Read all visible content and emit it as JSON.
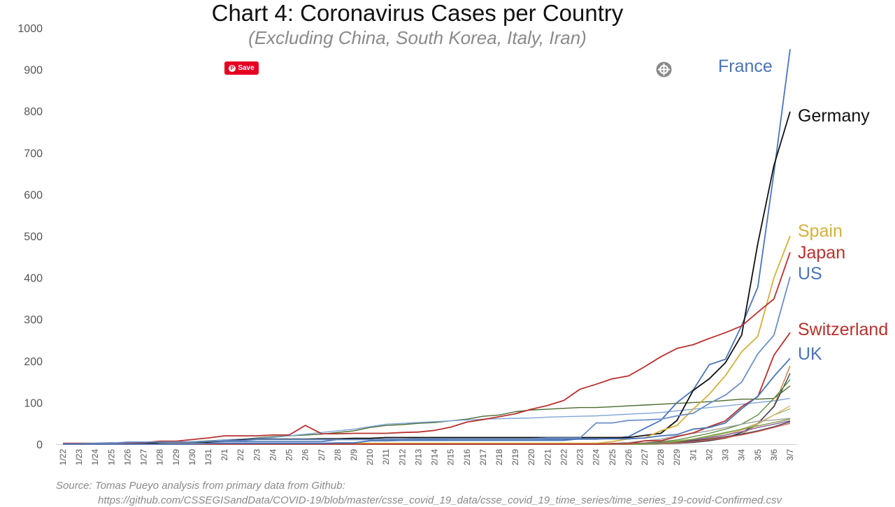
{
  "chart_data": {
    "type": "line",
    "title": "Chart 4: Coronavirus Cases per Country",
    "subtitle": "(Excluding China, South Korea, Italy, Iran)",
    "source_line1": "Source: Tomas Pueyo analysis from primary data from Github:",
    "source_line2": "https://github.com/CSSEGISandData/COVID-19/blob/master/csse_covid_19_data/csse_covid_19_time_series/time_series_19-covid-Confirmed.csv",
    "ylim": [
      0,
      1000
    ],
    "yticks": [
      0,
      100,
      200,
      300,
      400,
      500,
      600,
      700,
      800,
      900,
      1000
    ],
    "grid": false,
    "categories": [
      "1/22",
      "1/23",
      "1/24",
      "1/25",
      "1/26",
      "1/27",
      "1/28",
      "1/29",
      "1/30",
      "1/31",
      "2/1",
      "2/2",
      "2/3",
      "2/4",
      "2/5",
      "2/6",
      "2/7",
      "2/8",
      "2/9",
      "2/10",
      "2/11",
      "2/12",
      "2/13",
      "2/14",
      "2/15",
      "2/16",
      "2/17",
      "2/18",
      "2/19",
      "2/20",
      "2/21",
      "2/22",
      "2/23",
      "2/24",
      "2/25",
      "2/26",
      "2/27",
      "2/28",
      "2/29",
      "3/1",
      "3/2",
      "3/3",
      "3/4",
      "3/5",
      "3/6",
      "3/7"
    ],
    "series": [
      {
        "name": "France",
        "color": "#4a74b8",
        "labeled": true,
        "values": [
          0,
          0,
          2,
          3,
          3,
          3,
          4,
          5,
          5,
          5,
          6,
          6,
          6,
          6,
          6,
          6,
          6,
          11,
          11,
          11,
          11,
          11,
          11,
          11,
          12,
          12,
          12,
          12,
          12,
          12,
          12,
          12,
          12,
          12,
          14,
          18,
          38,
          57,
          100,
          130,
          191,
          204,
          285,
          377,
          653,
          949
        ]
      },
      {
        "name": "Germany",
        "color": "#111111",
        "labeled": true,
        "values": [
          0,
          0,
          0,
          0,
          0,
          1,
          4,
          4,
          4,
          5,
          8,
          10,
          12,
          12,
          12,
          12,
          13,
          13,
          14,
          14,
          16,
          16,
          16,
          16,
          16,
          16,
          16,
          16,
          16,
          16,
          16,
          16,
          16,
          16,
          16,
          16,
          21,
          26,
          57,
          129,
          157,
          196,
          262,
          482,
          670,
          799
        ]
      },
      {
        "name": "Spain",
        "color": "#d4b03a",
        "labeled": true,
        "values": [
          0,
          0,
          0,
          0,
          0,
          0,
          0,
          0,
          0,
          0,
          1,
          1,
          1,
          1,
          1,
          1,
          1,
          1,
          2,
          2,
          2,
          2,
          2,
          2,
          2,
          2,
          2,
          2,
          2,
          2,
          2,
          2,
          2,
          2,
          6,
          13,
          15,
          32,
          45,
          84,
          120,
          165,
          222,
          259,
          400,
          500
        ]
      },
      {
        "name": "Japan",
        "color": "#b8312f",
        "labeled": true,
        "values": [
          2,
          2,
          2,
          2,
          4,
          4,
          7,
          7,
          11,
          15,
          20,
          20,
          20,
          22,
          22,
          45,
          25,
          25,
          26,
          26,
          26,
          28,
          29,
          33,
          41,
          53,
          59,
          66,
          73,
          84,
          93,
          105,
          132,
          144,
          157,
          164,
          186,
          210,
          230,
          239,
          254,
          268,
          284,
          317,
          349,
          461
        ]
      },
      {
        "name": "US",
        "color": "#6b8fc7",
        "labeled": true,
        "values": [
          1,
          1,
          2,
          2,
          5,
          5,
          5,
          5,
          5,
          7,
          8,
          8,
          11,
          11,
          11,
          11,
          11,
          11,
          11,
          11,
          12,
          12,
          13,
          13,
          13,
          13,
          13,
          13,
          13,
          13,
          15,
          15,
          15,
          51,
          51,
          57,
          58,
          60,
          68,
          74,
          98,
          118,
          149,
          217,
          262,
          402
        ]
      },
      {
        "name": "Switzerland",
        "color": "#b8312f",
        "labeled": true,
        "values": [
          0,
          0,
          0,
          0,
          0,
          0,
          0,
          0,
          0,
          0,
          0,
          0,
          0,
          0,
          0,
          0,
          0,
          0,
          0,
          0,
          0,
          0,
          0,
          0,
          0,
          0,
          0,
          0,
          0,
          0,
          0,
          0,
          0,
          0,
          1,
          1,
          8,
          8,
          18,
          27,
          42,
          56,
          90,
          114,
          214,
          268
        ]
      },
      {
        "name": "UK",
        "color": "#4a74b8",
        "labeled": true,
        "values": [
          0,
          0,
          0,
          0,
          0,
          0,
          0,
          0,
          0,
          2,
          2,
          2,
          2,
          2,
          2,
          2,
          2,
          3,
          3,
          8,
          8,
          9,
          9,
          9,
          9,
          9,
          9,
          9,
          9,
          9,
          9,
          9,
          13,
          13,
          13,
          13,
          15,
          20,
          23,
          36,
          40,
          51,
          85,
          115,
          163,
          206
        ]
      },
      {
        "name": "",
        "color": "#4a6a2e",
        "labeled": false,
        "values": [
          0,
          0,
          0,
          0,
          0,
          2,
          5,
          5,
          6,
          8,
          10,
          12,
          15,
          18,
          20,
          22,
          24,
          28,
          32,
          40,
          45,
          47,
          50,
          52,
          56,
          60,
          67,
          70,
          78,
          82,
          84,
          86,
          88,
          88,
          90,
          92,
          94,
          96,
          98,
          100,
          102,
          105,
          108,
          108,
          110,
          140
        ]
      },
      {
        "name": "",
        "color": "#7fa6d8",
        "labeled": false,
        "values": [
          0,
          0,
          0,
          0,
          0,
          1,
          3,
          4,
          6,
          7,
          10,
          12,
          14,
          16,
          20,
          24,
          28,
          32,
          36,
          42,
          48,
          50,
          52,
          54,
          56,
          58,
          60,
          61,
          62,
          63,
          65,
          66,
          67,
          68,
          70,
          72,
          74,
          76,
          80,
          84,
          88,
          92,
          96,
          100,
          104,
          110
        ]
      },
      {
        "name": "",
        "color": "#c87c3b",
        "labeled": false,
        "values": [
          0,
          0,
          0,
          0,
          0,
          0,
          0,
          0,
          0,
          0,
          0,
          0,
          0,
          0,
          0,
          0,
          0,
          0,
          0,
          0,
          0,
          0,
          0,
          0,
          0,
          0,
          0,
          0,
          0,
          0,
          0,
          0,
          0,
          0,
          0,
          0,
          0,
          1,
          2,
          4,
          8,
          14,
          24,
          48,
          92,
          188
        ]
      },
      {
        "name": "",
        "color": "#2e4057",
        "labeled": false,
        "values": [
          0,
          0,
          0,
          0,
          0,
          0,
          0,
          0,
          0,
          0,
          0,
          0,
          0,
          0,
          0,
          0,
          0,
          0,
          0,
          0,
          0,
          0,
          0,
          0,
          0,
          0,
          0,
          0,
          0,
          0,
          0,
          0,
          0,
          0,
          0,
          0,
          0,
          1,
          2,
          4,
          8,
          15,
          28,
          50,
          90,
          170
        ]
      },
      {
        "name": "",
        "color": "#5b8d3e",
        "labeled": false,
        "values": [
          0,
          0,
          0,
          0,
          0,
          0,
          0,
          0,
          0,
          0,
          0,
          0,
          0,
          0,
          0,
          0,
          0,
          0,
          0,
          0,
          0,
          0,
          0,
          0,
          0,
          0,
          0,
          0,
          0,
          0,
          0,
          0,
          0,
          0,
          0,
          1,
          3,
          6,
          10,
          18,
          26,
          36,
          48,
          70,
          110,
          155
        ]
      },
      {
        "name": "",
        "color": "#9bc16a",
        "labeled": false,
        "values": [
          0,
          0,
          0,
          0,
          0,
          0,
          0,
          0,
          0,
          0,
          0,
          0,
          0,
          0,
          0,
          0,
          0,
          0,
          0,
          0,
          0,
          0,
          0,
          0,
          0,
          0,
          0,
          0,
          0,
          0,
          0,
          0,
          0,
          0,
          0,
          1,
          2,
          4,
          8,
          12,
          18,
          26,
          36,
          50,
          70,
          85
        ]
      },
      {
        "name": "",
        "color": "#e0a86b",
        "labeled": false,
        "values": [
          0,
          0,
          0,
          0,
          0,
          0,
          0,
          0,
          0,
          0,
          0,
          0,
          0,
          0,
          0,
          0,
          0,
          0,
          0,
          0,
          0,
          0,
          0,
          0,
          0,
          0,
          0,
          0,
          0,
          0,
          0,
          0,
          0,
          0,
          0,
          0,
          1,
          2,
          4,
          8,
          14,
          22,
          34,
          48,
          70,
          92
        ]
      },
      {
        "name": "",
        "color": "#a0a0a0",
        "labeled": false,
        "values": [
          0,
          0,
          0,
          0,
          0,
          0,
          0,
          0,
          0,
          0,
          0,
          0,
          0,
          0,
          0,
          0,
          0,
          0,
          0,
          0,
          0,
          0,
          0,
          0,
          0,
          0,
          0,
          0,
          0,
          0,
          0,
          0,
          0,
          0,
          2,
          4,
          8,
          12,
          20,
          26,
          32,
          40,
          48,
          55,
          58,
          62
        ]
      },
      {
        "name": "",
        "color": "#8e5ea2",
        "labeled": false,
        "values": [
          0,
          0,
          0,
          0,
          0,
          0,
          0,
          0,
          0,
          0,
          0,
          0,
          0,
          0,
          0,
          0,
          0,
          0,
          0,
          0,
          0,
          0,
          0,
          0,
          0,
          0,
          0,
          0,
          0,
          0,
          0,
          0,
          0,
          0,
          0,
          1,
          2,
          4,
          6,
          10,
          16,
          22,
          30,
          40,
          48,
          56
        ]
      },
      {
        "name": "",
        "color": "#3d3d3d",
        "labeled": false,
        "values": [
          0,
          0,
          0,
          0,
          0,
          0,
          0,
          0,
          0,
          0,
          0,
          0,
          0,
          0,
          0,
          0,
          0,
          0,
          0,
          0,
          0,
          0,
          0,
          0,
          0,
          0,
          0,
          0,
          0,
          0,
          0,
          0,
          0,
          0,
          0,
          1,
          1,
          2,
          4,
          8,
          12,
          18,
          24,
          32,
          42,
          54
        ]
      },
      {
        "name": "",
        "color": "#d65f5f",
        "labeled": false,
        "values": [
          0,
          0,
          0,
          0,
          0,
          0,
          0,
          0,
          0,
          0,
          0,
          0,
          0,
          0,
          0,
          0,
          0,
          0,
          0,
          0,
          0,
          0,
          0,
          0,
          0,
          0,
          0,
          0,
          0,
          0,
          0,
          0,
          0,
          0,
          0,
          0,
          1,
          1,
          3,
          6,
          10,
          16,
          22,
          30,
          40,
          50
        ]
      },
      {
        "name": "",
        "color": "#7b9e3a",
        "labeled": false,
        "values": [
          0,
          0,
          0,
          0,
          0,
          0,
          0,
          0,
          0,
          0,
          0,
          0,
          0,
          0,
          0,
          0,
          0,
          0,
          0,
          0,
          0,
          0,
          0,
          0,
          0,
          0,
          0,
          0,
          0,
          0,
          0,
          0,
          0,
          0,
          0,
          0,
          0,
          2,
          6,
          12,
          20,
          28,
          36,
          44,
          52,
          60
        ]
      }
    ]
  },
  "widgets": {
    "save_label": "Save",
    "pin_glyph": "P"
  }
}
